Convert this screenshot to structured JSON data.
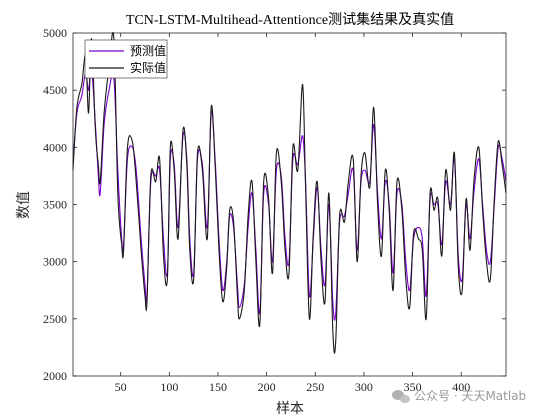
{
  "chart_data": {
    "type": "line",
    "title": "TCN-LSTM-Multihead-Attentionce测试集结果及真实值",
    "xlabel": "样本",
    "ylabel": "数值",
    "xlim": [
      1,
      446
    ],
    "ylim": [
      2000,
      5000
    ],
    "xticks": [
      50,
      100,
      150,
      200,
      250,
      300,
      350,
      400
    ],
    "yticks": [
      2000,
      2500,
      3000,
      3500,
      4000,
      4500,
      5000
    ],
    "legend_position": "top-left",
    "colors": {
      "predicted": "#7a00cc",
      "actual": "#1a1a1a"
    },
    "series": [
      {
        "name": "预测值",
        "keypoints": [
          [
            1,
            3850
          ],
          [
            5,
            4300
          ],
          [
            10,
            4450
          ],
          [
            14,
            4650
          ],
          [
            17,
            4500
          ],
          [
            20,
            4700
          ],
          [
            24,
            4200
          ],
          [
            27,
            3750
          ],
          [
            29,
            3600
          ],
          [
            33,
            4200
          ],
          [
            38,
            4500
          ],
          [
            43,
            4600
          ],
          [
            47,
            3800
          ],
          [
            51,
            3200
          ],
          [
            53,
            3150
          ],
          [
            57,
            3900
          ],
          [
            62,
            4000
          ],
          [
            66,
            3800
          ],
          [
            71,
            3200
          ],
          [
            75,
            2800
          ],
          [
            77,
            2700
          ],
          [
            81,
            3700
          ],
          [
            86,
            3750
          ],
          [
            90,
            3800
          ],
          [
            94,
            3200
          ],
          [
            98,
            2900
          ],
          [
            101,
            3900
          ],
          [
            105,
            3850
          ],
          [
            109,
            3300
          ],
          [
            114,
            4100
          ],
          [
            118,
            3900
          ],
          [
            121,
            3200
          ],
          [
            125,
            2900
          ],
          [
            129,
            3900
          ],
          [
            134,
            3850
          ],
          [
            139,
            3300
          ],
          [
            143,
            4300
          ],
          [
            147,
            3900
          ],
          [
            151,
            3200
          ],
          [
            155,
            2750
          ],
          [
            159,
            3000
          ],
          [
            162,
            3400
          ],
          [
            166,
            3300
          ],
          [
            170,
            2800
          ],
          [
            172,
            2600
          ],
          [
            177,
            2800
          ],
          [
            181,
            3300
          ],
          [
            185,
            3600
          ],
          [
            189,
            3100
          ],
          [
            193,
            2550
          ],
          [
            197,
            3600
          ],
          [
            202,
            3500
          ],
          [
            206,
            3000
          ],
          [
            210,
            3800
          ],
          [
            215,
            3750
          ],
          [
            219,
            3200
          ],
          [
            223,
            3000
          ],
          [
            227,
            3900
          ],
          [
            232,
            3850
          ],
          [
            237,
            4100
          ],
          [
            240,
            3700
          ],
          [
            244,
            2700
          ],
          [
            248,
            3200
          ],
          [
            252,
            3650
          ],
          [
            256,
            3100
          ],
          [
            260,
            2800
          ],
          [
            264,
            3500
          ],
          [
            268,
            2650
          ],
          [
            271,
            2550
          ],
          [
            275,
            3350
          ],
          [
            280,
            3400
          ],
          [
            284,
            3600
          ],
          [
            289,
            3800
          ],
          [
            293,
            3100
          ],
          [
            297,
            3700
          ],
          [
            301,
            3800
          ],
          [
            306,
            3700
          ],
          [
            310,
            4200
          ],
          [
            314,
            3600
          ],
          [
            318,
            3200
          ],
          [
            322,
            3700
          ],
          [
            326,
            3500
          ],
          [
            330,
            2900
          ],
          [
            334,
            3600
          ],
          [
            339,
            3500
          ],
          [
            343,
            3000
          ],
          [
            347,
            2750
          ],
          [
            351,
            3200
          ],
          [
            356,
            3300
          ],
          [
            360,
            3200
          ],
          [
            364,
            2700
          ],
          [
            368,
            3550
          ],
          [
            372,
            3500
          ],
          [
            376,
            3500
          ],
          [
            380,
            3150
          ],
          [
            384,
            3700
          ],
          [
            389,
            3500
          ],
          [
            393,
            3900
          ],
          [
            397,
            3050
          ],
          [
            401,
            2850
          ],
          [
            405,
            3500
          ],
          [
            409,
            3200
          ],
          [
            413,
            3600
          ],
          [
            418,
            3900
          ],
          [
            422,
            3500
          ],
          [
            426,
            3100
          ],
          [
            430,
            3000
          ],
          [
            434,
            3500
          ],
          [
            438,
            4000
          ],
          [
            442,
            3900
          ],
          [
            446,
            3700
          ]
        ]
      },
      {
        "name": "实际值",
        "keypoints": [
          [
            1,
            3800
          ],
          [
            5,
            4350
          ],
          [
            10,
            4550
          ],
          [
            14,
            4800
          ],
          [
            17,
            4300
          ],
          [
            20,
            4950
          ],
          [
            24,
            4150
          ],
          [
            27,
            3850
          ],
          [
            29,
            3700
          ],
          [
            33,
            4300
          ],
          [
            38,
            4700
          ],
          [
            43,
            4950
          ],
          [
            47,
            3600
          ],
          [
            51,
            3150
          ],
          [
            53,
            3100
          ],
          [
            57,
            4000
          ],
          [
            62,
            4050
          ],
          [
            66,
            3700
          ],
          [
            71,
            3100
          ],
          [
            75,
            2700
          ],
          [
            77,
            2650
          ],
          [
            81,
            3750
          ],
          [
            86,
            3700
          ],
          [
            90,
            3900
          ],
          [
            94,
            3050
          ],
          [
            98,
            2850
          ],
          [
            101,
            4000
          ],
          [
            105,
            3800
          ],
          [
            109,
            3200
          ],
          [
            114,
            4150
          ],
          [
            118,
            3850
          ],
          [
            121,
            3100
          ],
          [
            125,
            2850
          ],
          [
            129,
            3950
          ],
          [
            134,
            3800
          ],
          [
            139,
            3200
          ],
          [
            143,
            4350
          ],
          [
            147,
            3850
          ],
          [
            151,
            3100
          ],
          [
            155,
            2650
          ],
          [
            159,
            2950
          ],
          [
            162,
            3450
          ],
          [
            166,
            3350
          ],
          [
            170,
            2700
          ],
          [
            172,
            2500
          ],
          [
            177,
            2750
          ],
          [
            181,
            3400
          ],
          [
            185,
            3700
          ],
          [
            189,
            3000
          ],
          [
            193,
            2450
          ],
          [
            197,
            3700
          ],
          [
            202,
            3550
          ],
          [
            206,
            2900
          ],
          [
            210,
            3950
          ],
          [
            215,
            3700
          ],
          [
            219,
            3100
          ],
          [
            223,
            2900
          ],
          [
            227,
            4000
          ],
          [
            232,
            3800
          ],
          [
            237,
            4550
          ],
          [
            240,
            3650
          ],
          [
            244,
            2500
          ],
          [
            248,
            3250
          ],
          [
            252,
            3700
          ],
          [
            256,
            3000
          ],
          [
            260,
            2650
          ],
          [
            264,
            3600
          ],
          [
            268,
            2400
          ],
          [
            271,
            2300
          ],
          [
            275,
            3400
          ],
          [
            280,
            3350
          ],
          [
            284,
            3700
          ],
          [
            289,
            3900
          ],
          [
            293,
            3000
          ],
          [
            297,
            3750
          ],
          [
            301,
            3950
          ],
          [
            306,
            3650
          ],
          [
            310,
            4350
          ],
          [
            314,
            3500
          ],
          [
            318,
            3050
          ],
          [
            322,
            3800
          ],
          [
            326,
            3450
          ],
          [
            330,
            2750
          ],
          [
            334,
            3700
          ],
          [
            339,
            3450
          ],
          [
            343,
            2850
          ],
          [
            347,
            2600
          ],
          [
            351,
            3250
          ],
          [
            356,
            3200
          ],
          [
            360,
            3100
          ],
          [
            364,
            2500
          ],
          [
            368,
            3600
          ],
          [
            372,
            3450
          ],
          [
            376,
            3550
          ],
          [
            380,
            3050
          ],
          [
            384,
            3800
          ],
          [
            389,
            3450
          ],
          [
            393,
            3950
          ],
          [
            397,
            2950
          ],
          [
            401,
            2750
          ],
          [
            405,
            3550
          ],
          [
            409,
            3100
          ],
          [
            413,
            3700
          ],
          [
            418,
            4000
          ],
          [
            422,
            3450
          ],
          [
            426,
            3000
          ],
          [
            430,
            2850
          ],
          [
            434,
            3550
          ],
          [
            438,
            4050
          ],
          [
            442,
            3850
          ],
          [
            446,
            3600
          ]
        ]
      }
    ]
  },
  "watermark": {
    "text": "公众号 · 天天Matlab"
  }
}
